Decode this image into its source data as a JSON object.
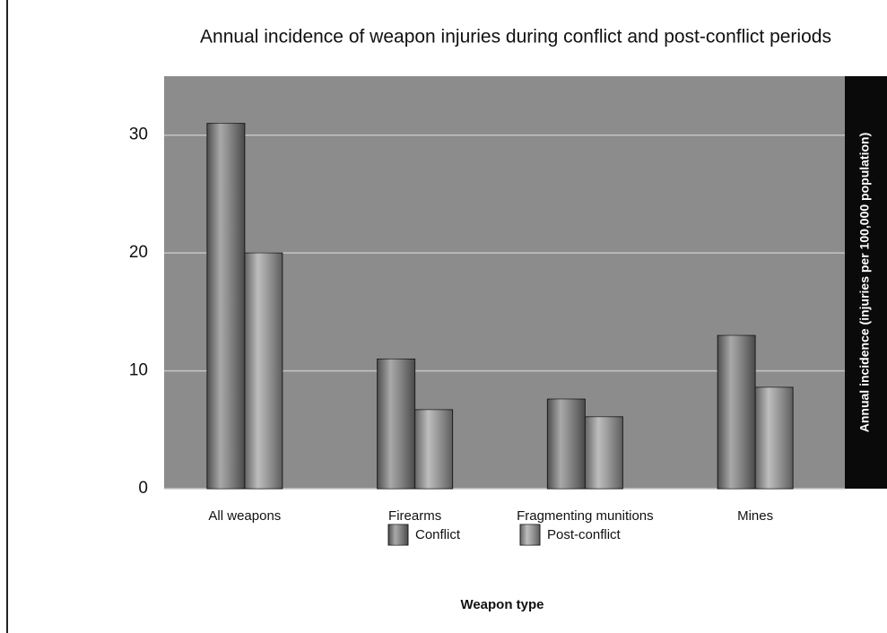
{
  "chart_data": {
    "type": "bar",
    "title": "Annual incidence of weapon injuries during conflict and post-conflict periods",
    "categories": [
      "All weapons",
      "Firearms",
      "Fragmenting munitions",
      "Mines"
    ],
    "series": [
      {
        "name": "Conflict",
        "color": "#7a7a7a",
        "values": [
          31,
          11,
          7.6,
          13
        ]
      },
      {
        "name": "Post-conflict",
        "color": "#9a9a9a",
        "values": [
          20,
          6.7,
          6.1,
          8.6
        ]
      }
    ],
    "ylabel": "Annual incidence (injuries per 100,000 population)",
    "xlabel": "Weapon type",
    "ylim": [
      0,
      35
    ],
    "yticks": [
      0,
      10,
      20,
      30
    ],
    "grid": true
  }
}
